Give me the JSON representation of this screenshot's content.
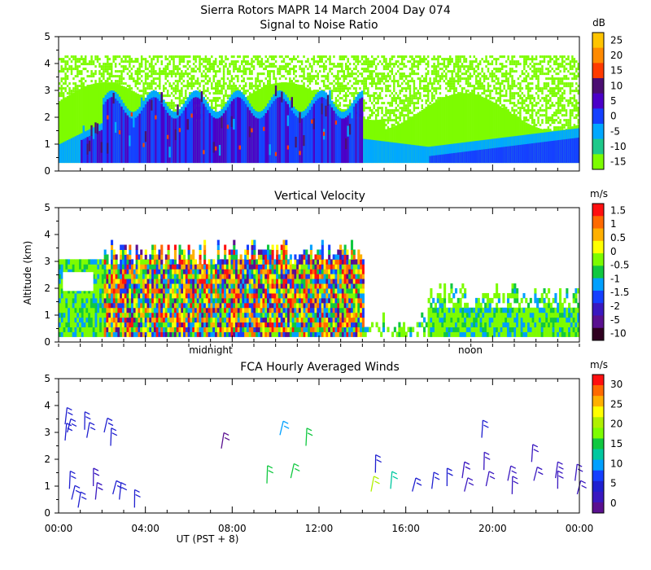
{
  "header": {
    "title_line1": "Sierra Rotors  MAPR 14 March 2004 Day 074",
    "title_line2": "Signal to Noise Ratio"
  },
  "chart_data": [
    {
      "type": "heatmap",
      "title": "Signal to Noise Ratio",
      "ylabel": "",
      "ylim": [
        0,
        5
      ],
      "yticks": [
        "0",
        "1",
        "2",
        "3",
        "4",
        "5"
      ],
      "xlim_hours": [
        0,
        24
      ],
      "colorbar": {
        "unit": "dB",
        "labels": [
          "25",
          "20",
          "15",
          "10",
          "5",
          "0",
          "-5",
          "-10",
          "-15"
        ],
        "colors": [
          "#ffc400",
          "#ff8a00",
          "#ff3b00",
          "#4b0e72",
          "#4b00c8",
          "#1540ff",
          "#00a8ff",
          "#1ec98a",
          "#7dfc00"
        ]
      },
      "description": "SNR time-height section, echoes from about 0.3 to 4.3 km"
    },
    {
      "type": "heatmap",
      "title": "Vertical Velocity",
      "ylabel": "Altitude (km)",
      "ylim": [
        0,
        5
      ],
      "yticks": [
        "0",
        "1",
        "2",
        "3",
        "4",
        "5"
      ],
      "xlim_hours": [
        0,
        24
      ],
      "time_markers": [
        "midnight",
        "noon"
      ],
      "colorbar": {
        "unit": "m/s",
        "labels": [
          "1.5",
          "1",
          "0.5",
          "0",
          "-0.5",
          "-1",
          "-1.5",
          "-2",
          "-5",
          "-10"
        ],
        "colors": [
          "#ff1010",
          "#ff6a00",
          "#ffb000",
          "#ffff00",
          "#7dfc00",
          "#10c840",
          "#00a0ff",
          "#1540ff",
          "#3a18c0",
          "#5a1090",
          "#300020"
        ]
      }
    },
    {
      "type": "scatter",
      "title": "FCA Hourly Averaged Winds",
      "ylim": [
        0,
        5
      ],
      "yticks": [
        "0",
        "1",
        "2",
        "3",
        "4",
        "5"
      ],
      "xlim_hours": [
        0,
        24
      ],
      "xticks": [
        "00:00",
        "04:00",
        "08:00",
        "12:00",
        "16:00",
        "20:00",
        "00:00"
      ],
      "xlabel": "UT  (PST + 8)",
      "colorbar": {
        "unit": "m/s",
        "labels": [
          "30",
          "25",
          "20",
          "15",
          "10",
          "5",
          "0"
        ],
        "colors": [
          "#ff1010",
          "#ff6a00",
          "#ffb000",
          "#ffff00",
          "#b0f000",
          "#7dfc00",
          "#10c840",
          "#00c8a0",
          "#00a0ff",
          "#1540ff",
          "#2020d0",
          "#3a18c0",
          "#5a1090"
        ]
      },
      "wind_barbs": [
        {
          "t": 0.3,
          "alt": 3.3,
          "spd": 6
        },
        {
          "t": 0.4,
          "alt": 3.0,
          "spd": 6
        },
        {
          "t": 0.3,
          "alt": 2.7,
          "spd": 6
        },
        {
          "t": 1.2,
          "alt": 3.1,
          "spd": 5
        },
        {
          "t": 1.3,
          "alt": 2.8,
          "spd": 5
        },
        {
          "t": 2.1,
          "alt": 3.0,
          "spd": 5
        },
        {
          "t": 2.4,
          "alt": 2.5,
          "spd": 5
        },
        {
          "t": 0.5,
          "alt": 0.9,
          "spd": 5
        },
        {
          "t": 0.6,
          "alt": 0.5,
          "spd": 5
        },
        {
          "t": 0.9,
          "alt": 0.2,
          "spd": 5
        },
        {
          "t": 1.6,
          "alt": 1.0,
          "spd": 3
        },
        {
          "t": 1.7,
          "alt": 0.5,
          "spd": 3
        },
        {
          "t": 2.5,
          "alt": 0.7,
          "spd": 5
        },
        {
          "t": 2.8,
          "alt": 0.5,
          "spd": 5
        },
        {
          "t": 3.5,
          "alt": 0.2,
          "spd": 5
        },
        {
          "t": 7.5,
          "alt": 2.4,
          "spd": 2
        },
        {
          "t": 10.2,
          "alt": 2.9,
          "spd": 10
        },
        {
          "t": 11.4,
          "alt": 2.5,
          "spd": 15
        },
        {
          "t": 9.6,
          "alt": 1.1,
          "spd": 17
        },
        {
          "t": 10.7,
          "alt": 1.3,
          "spd": 17
        },
        {
          "t": 14.4,
          "alt": 0.8,
          "spd": 22
        },
        {
          "t": 14.6,
          "alt": 1.5,
          "spd": 5
        },
        {
          "t": 15.3,
          "alt": 0.9,
          "spd": 14
        },
        {
          "t": 16.3,
          "alt": 0.8,
          "spd": 6
        },
        {
          "t": 17.2,
          "alt": 0.9,
          "spd": 6
        },
        {
          "t": 17.9,
          "alt": 1.0,
          "spd": 6
        },
        {
          "t": 18.6,
          "alt": 1.3,
          "spd": 3
        },
        {
          "t": 18.7,
          "alt": 0.8,
          "spd": 3
        },
        {
          "t": 19.5,
          "alt": 2.8,
          "spd": 6
        },
        {
          "t": 19.6,
          "alt": 1.6,
          "spd": 3
        },
        {
          "t": 19.7,
          "alt": 1.0,
          "spd": 3
        },
        {
          "t": 20.7,
          "alt": 1.2,
          "spd": 3
        },
        {
          "t": 20.9,
          "alt": 0.7,
          "spd": 3
        },
        {
          "t": 21.8,
          "alt": 1.9,
          "spd": 3
        },
        {
          "t": 21.9,
          "alt": 1.2,
          "spd": 3
        },
        {
          "t": 22.9,
          "alt": 1.3,
          "spd": 3
        },
        {
          "t": 23.0,
          "alt": 0.9,
          "spd": 3
        },
        {
          "t": 23.8,
          "alt": 1.2,
          "spd": 3
        },
        {
          "t": 23.9,
          "alt": 0.7,
          "spd": 3
        }
      ]
    }
  ]
}
